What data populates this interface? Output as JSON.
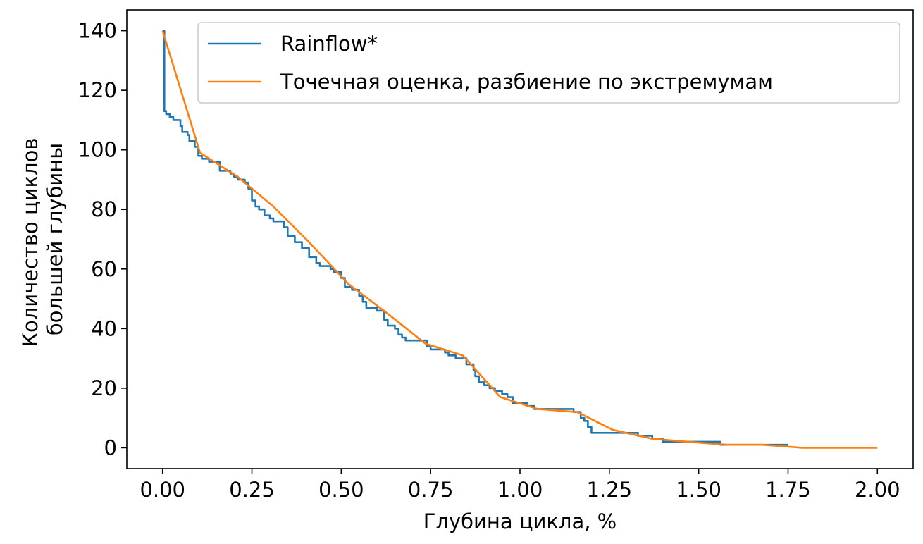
{
  "chart_data": {
    "type": "line",
    "xlabel": "Глубина цикла, %",
    "ylabel_lines": [
      "Количество циклов",
      "большей глубины"
    ],
    "xlim": [
      -0.1,
      2.1
    ],
    "ylim": [
      -7,
      147
    ],
    "xticks": [
      0.0,
      0.25,
      0.5,
      0.75,
      1.0,
      1.25,
      1.5,
      1.75,
      2.0
    ],
    "xtick_labels": [
      "0.00",
      "0.25",
      "0.50",
      "0.75",
      "1.00",
      "1.25",
      "1.50",
      "1.75",
      "2.00"
    ],
    "yticks": [
      0,
      20,
      40,
      60,
      80,
      100,
      120,
      140
    ],
    "ytick_labels": [
      "0",
      "20",
      "40",
      "60",
      "80",
      "100",
      "120",
      "140"
    ],
    "grid": false,
    "legend_position": "top-right",
    "series": [
      {
        "name": "Rainflow*",
        "color": "#1f77b4",
        "step": true,
        "points": [
          [
            0.0,
            140
          ],
          [
            0.005,
            113
          ],
          [
            0.01,
            112
          ],
          [
            0.02,
            111
          ],
          [
            0.03,
            110
          ],
          [
            0.05,
            108
          ],
          [
            0.055,
            106
          ],
          [
            0.07,
            105
          ],
          [
            0.075,
            103
          ],
          [
            0.09,
            101
          ],
          [
            0.1,
            98
          ],
          [
            0.11,
            97
          ],
          [
            0.13,
            96
          ],
          [
            0.16,
            93
          ],
          [
            0.19,
            92
          ],
          [
            0.2,
            91
          ],
          [
            0.21,
            90
          ],
          [
            0.23,
            89
          ],
          [
            0.24,
            87
          ],
          [
            0.25,
            83
          ],
          [
            0.26,
            81
          ],
          [
            0.27,
            80
          ],
          [
            0.285,
            78
          ],
          [
            0.3,
            77
          ],
          [
            0.31,
            76
          ],
          [
            0.34,
            74
          ],
          [
            0.35,
            71
          ],
          [
            0.37,
            69
          ],
          [
            0.39,
            67
          ],
          [
            0.41,
            64
          ],
          [
            0.43,
            62
          ],
          [
            0.44,
            61
          ],
          [
            0.47,
            60
          ],
          [
            0.48,
            59
          ],
          [
            0.5,
            57
          ],
          [
            0.51,
            54
          ],
          [
            0.53,
            53
          ],
          [
            0.55,
            51
          ],
          [
            0.56,
            49
          ],
          [
            0.57,
            47
          ],
          [
            0.6,
            46
          ],
          [
            0.62,
            43
          ],
          [
            0.63,
            41
          ],
          [
            0.65,
            40
          ],
          [
            0.66,
            38
          ],
          [
            0.67,
            37
          ],
          [
            0.68,
            36
          ],
          [
            0.74,
            34
          ],
          [
            0.75,
            33
          ],
          [
            0.79,
            32
          ],
          [
            0.8,
            31
          ],
          [
            0.82,
            30
          ],
          [
            0.85,
            28
          ],
          [
            0.87,
            26
          ],
          [
            0.875,
            24
          ],
          [
            0.885,
            22
          ],
          [
            0.9,
            21
          ],
          [
            0.915,
            20
          ],
          [
            0.93,
            19
          ],
          [
            0.95,
            18
          ],
          [
            0.965,
            17
          ],
          [
            0.98,
            15
          ],
          [
            1.02,
            14
          ],
          [
            1.04,
            13
          ],
          [
            1.15,
            12
          ],
          [
            1.17,
            10
          ],
          [
            1.18,
            9
          ],
          [
            1.19,
            7
          ],
          [
            1.2,
            5
          ],
          [
            1.33,
            4
          ],
          [
            1.37,
            3
          ],
          [
            1.4,
            2
          ],
          [
            1.56,
            1
          ],
          [
            1.75,
            1
          ]
        ]
      },
      {
        "name": "Точечная оценка, разбиение по экстремумам",
        "color": "#ff7f0e",
        "step": false,
        "points": [
          [
            0.0,
            140
          ],
          [
            0.105,
            99
          ],
          [
            0.21,
            91
          ],
          [
            0.31,
            81
          ],
          [
            0.41,
            69
          ],
          [
            0.52,
            55
          ],
          [
            0.63,
            45
          ],
          [
            0.735,
            35
          ],
          [
            0.84,
            31
          ],
          [
            0.945,
            17
          ],
          [
            1.05,
            13
          ],
          [
            1.16,
            12
          ],
          [
            1.26,
            6
          ],
          [
            1.37,
            3
          ],
          [
            1.47,
            2
          ],
          [
            1.58,
            1
          ],
          [
            1.68,
            1
          ],
          [
            1.79,
            0
          ],
          [
            2.0,
            0
          ]
        ]
      }
    ]
  }
}
